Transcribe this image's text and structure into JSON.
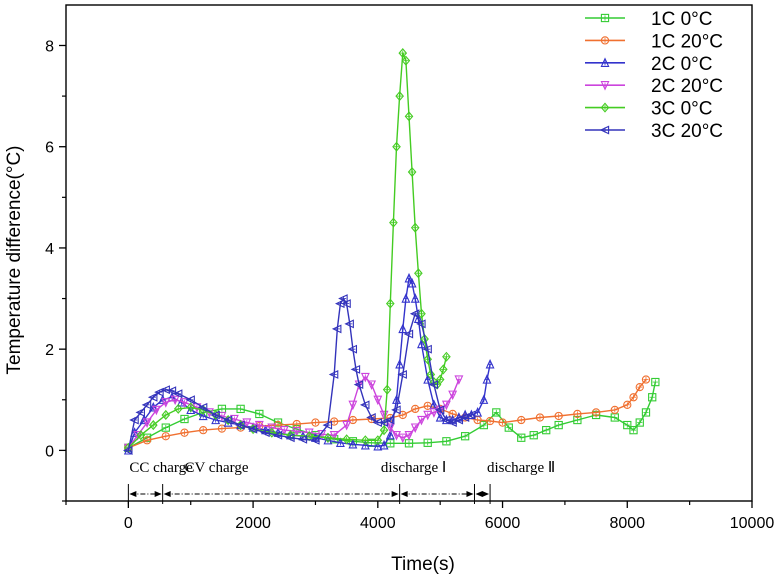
{
  "chart_data": {
    "type": "line",
    "title": "",
    "xlabel": "Time(s)",
    "ylabel": "Temperature difference(°C)",
    "xlim": [
      -1000,
      10000
    ],
    "ylim": [
      -1,
      8.8
    ],
    "x_ticks": [
      0,
      2000,
      4000,
      6000,
      8000,
      10000
    ],
    "y_ticks": [
      0,
      2,
      4,
      6,
      8
    ],
    "x_tick_labels": [
      "0",
      "2000",
      "4000",
      "6000",
      "8000",
      "10000"
    ],
    "y_tick_labels": [
      "0",
      "2",
      "4",
      "6",
      "8"
    ],
    "grid": false,
    "legend_position": "top-right",
    "series": [
      {
        "name": "1C 0°C",
        "color": "#33cc33",
        "marker": "square",
        "x": [
          0,
          300,
          600,
          900,
          1200,
          1500,
          1800,
          2100,
          2400,
          2700,
          3000,
          3300,
          3600,
          3900,
          4200,
          4500,
          4800,
          5100,
          5400,
          5700,
          5900,
          6100,
          6300,
          6500,
          6700,
          6900,
          7200,
          7500,
          7800,
          8000,
          8100,
          8200,
          8300,
          8400,
          8450
        ],
        "y": [
          0.05,
          0.25,
          0.45,
          0.62,
          0.75,
          0.82,
          0.82,
          0.72,
          0.55,
          0.42,
          0.3,
          0.22,
          0.18,
          0.15,
          0.14,
          0.14,
          0.15,
          0.18,
          0.28,
          0.5,
          0.75,
          0.45,
          0.25,
          0.3,
          0.4,
          0.5,
          0.6,
          0.7,
          0.65,
          0.5,
          0.4,
          0.55,
          0.75,
          1.05,
          1.35
        ]
      },
      {
        "name": "1C 20°C",
        "color": "#f07030",
        "marker": "circle",
        "x": [
          0,
          300,
          600,
          900,
          1200,
          1500,
          1800,
          2100,
          2400,
          2700,
          3000,
          3300,
          3600,
          3900,
          4200,
          4400,
          4600,
          4800,
          5000,
          5200,
          5400,
          5600,
          5800,
          6000,
          6300,
          6600,
          6900,
          7200,
          7500,
          7800,
          8000,
          8100,
          8200,
          8300
        ],
        "y": [
          0.05,
          0.2,
          0.28,
          0.35,
          0.4,
          0.43,
          0.45,
          0.48,
          0.5,
          0.52,
          0.55,
          0.57,
          0.6,
          0.62,
          0.64,
          0.7,
          0.82,
          0.88,
          0.82,
          0.72,
          0.65,
          0.6,
          0.58,
          0.55,
          0.6,
          0.65,
          0.68,
          0.72,
          0.75,
          0.8,
          0.9,
          1.05,
          1.25,
          1.4
        ]
      },
      {
        "name": "2C 0°C",
        "color": "#3333cc",
        "marker": "triangle-up",
        "x": [
          0,
          100,
          250,
          400,
          550,
          700,
          850,
          1000,
          1200,
          1400,
          1600,
          1800,
          2000,
          2200,
          2400,
          2600,
          2800,
          3000,
          3200,
          3400,
          3600,
          3800,
          4000,
          4100,
          4200,
          4300,
          4350,
          4400,
          4450,
          4500,
          4550,
          4600,
          4650,
          4700,
          4800,
          4900,
          5000,
          5100,
          5200,
          5300,
          5400,
          5500,
          5600,
          5700,
          5750,
          5800
        ],
        "y": [
          0.0,
          0.35,
          0.6,
          0.85,
          1.0,
          1.05,
          0.95,
          0.8,
          0.68,
          0.6,
          0.55,
          0.5,
          0.45,
          0.4,
          0.35,
          0.3,
          0.28,
          0.25,
          0.2,
          0.15,
          0.12,
          0.1,
          0.08,
          0.1,
          0.3,
          1.0,
          1.7,
          2.4,
          3.0,
          3.4,
          3.3,
          3.0,
          2.6,
          2.1,
          1.4,
          0.9,
          0.65,
          0.6,
          0.6,
          0.65,
          0.7,
          0.7,
          0.75,
          1.0,
          1.4,
          1.7
        ]
      },
      {
        "name": "2C 20°C",
        "color": "#cc44dd",
        "marker": "triangle-down",
        "x": [
          0,
          150,
          300,
          450,
          600,
          750,
          900,
          1100,
          1300,
          1500,
          1700,
          1900,
          2100,
          2300,
          2500,
          2700,
          2900,
          3100,
          3300,
          3500,
          3600,
          3700,
          3800,
          3900,
          4000,
          4100,
          4200,
          4300,
          4400,
          4500,
          4600,
          4700,
          4800,
          4900,
          5000,
          5100,
          5200,
          5300
        ],
        "y": [
          0.05,
          0.3,
          0.55,
          0.8,
          0.95,
          1.0,
          0.95,
          0.85,
          0.75,
          0.68,
          0.62,
          0.55,
          0.5,
          0.45,
          0.4,
          0.38,
          0.35,
          0.32,
          0.3,
          0.5,
          0.9,
          1.3,
          1.45,
          1.3,
          1.0,
          0.7,
          0.45,
          0.3,
          0.25,
          0.3,
          0.45,
          0.6,
          0.7,
          0.75,
          0.8,
          0.9,
          1.1,
          1.4
        ]
      },
      {
        "name": "3C 0°C",
        "color": "#44cc22",
        "marker": "diamond",
        "x": [
          0,
          200,
          400,
          600,
          800,
          1000,
          1200,
          1400,
          1600,
          1800,
          2000,
          2300,
          2600,
          2900,
          3200,
          3500,
          3800,
          4000,
          4100,
          4150,
          4200,
          4250,
          4300,
          4350,
          4400,
          4450,
          4500,
          4550,
          4600,
          4650,
          4700,
          4750,
          4800,
          4850,
          4900,
          4950,
          5000,
          5050,
          5100
        ],
        "y": [
          0.05,
          0.3,
          0.5,
          0.7,
          0.82,
          0.85,
          0.8,
          0.7,
          0.6,
          0.5,
          0.42,
          0.35,
          0.3,
          0.28,
          0.25,
          0.22,
          0.2,
          0.2,
          0.4,
          1.2,
          2.9,
          4.5,
          6.0,
          7.0,
          7.85,
          7.7,
          6.6,
          5.5,
          4.4,
          3.5,
          2.7,
          2.2,
          1.8,
          1.5,
          1.35,
          1.3,
          1.4,
          1.6,
          1.85
        ]
      },
      {
        "name": "3C 20°C",
        "color": "#3333bb",
        "marker": "triangle-left",
        "x": [
          0,
          100,
          200,
          300,
          400,
          500,
          600,
          700,
          800,
          1000,
          1200,
          1400,
          1600,
          1800,
          2000,
          2200,
          2400,
          2600,
          2800,
          3000,
          3200,
          3300,
          3350,
          3400,
          3450,
          3500,
          3550,
          3600,
          3650,
          3700,
          3800,
          3900,
          4000,
          4100,
          4200,
          4300,
          4400,
          4500,
          4600,
          4700,
          4800,
          4900,
          5000,
          5100,
          5200,
          5300,
          5400,
          5500
        ],
        "y": [
          0.0,
          0.6,
          0.75,
          0.9,
          1.05,
          1.15,
          1.2,
          1.18,
          1.12,
          1.0,
          0.85,
          0.7,
          0.6,
          0.5,
          0.42,
          0.35,
          0.3,
          0.25,
          0.22,
          0.2,
          0.5,
          1.5,
          2.4,
          2.9,
          3.0,
          2.9,
          2.5,
          2.0,
          1.6,
          1.3,
          0.9,
          0.65,
          0.55,
          0.55,
          0.6,
          0.8,
          1.5,
          2.3,
          2.7,
          2.5,
          2.0,
          1.3,
          0.8,
          0.6,
          0.55,
          0.6,
          0.65,
          0.7
        ]
      }
    ],
    "phases": [
      {
        "label": "CC charge",
        "start": 0,
        "end": 550
      },
      {
        "label": "CV charge",
        "start": 550,
        "end": 4350
      },
      {
        "label": "discharge Ⅰ",
        "start": 4350,
        "end": 5550
      },
      {
        "label": "discharge Ⅱ",
        "start": 5550,
        "end": 5800
      }
    ]
  }
}
